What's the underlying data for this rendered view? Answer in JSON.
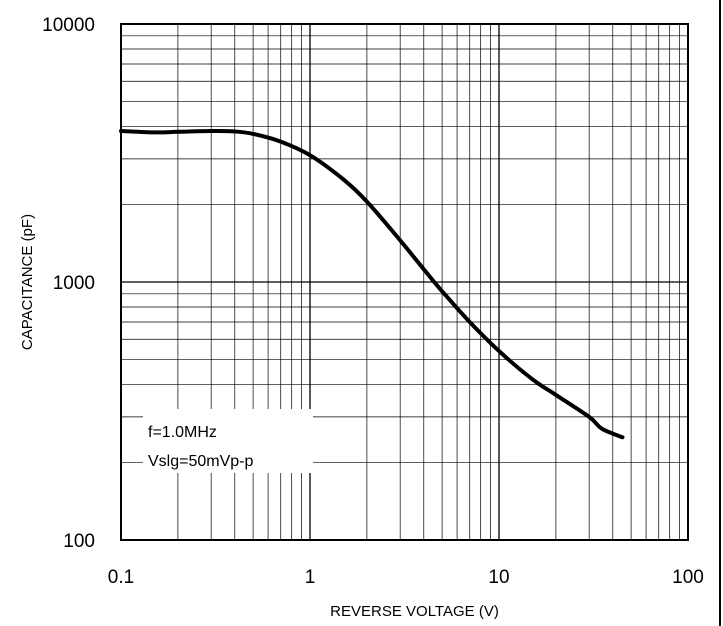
{
  "chart_data": {
    "type": "line",
    "xlabel": "REVERSE VOLTAGE (V)",
    "ylabel": "CAPACITANCE (pF)",
    "x_scale": "log",
    "y_scale": "log",
    "xlim": [
      0.1,
      100
    ],
    "ylim": [
      100,
      10000
    ],
    "grid": true,
    "x_tick_labels": [
      "0.1",
      "1",
      "10",
      "100"
    ],
    "y_tick_labels": [
      "100",
      "1000",
      "10000"
    ],
    "annotations": [
      "f=1.0MHz",
      "Vslg=50mVp-p"
    ],
    "series": [
      {
        "x": [
          0.1,
          0.15,
          0.2,
          0.3,
          0.4,
          0.5,
          0.7,
          1,
          1.5,
          2,
          3,
          4,
          5,
          7,
          10,
          15,
          20,
          30,
          35,
          45
        ],
        "y": [
          3850,
          3800,
          3820,
          3850,
          3830,
          3750,
          3500,
          3100,
          2500,
          2050,
          1450,
          1120,
          920,
          700,
          540,
          420,
          365,
          300,
          270,
          250
        ]
      }
    ]
  }
}
